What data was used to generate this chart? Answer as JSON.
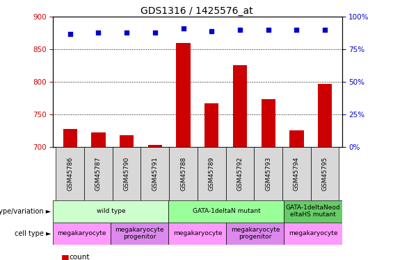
{
  "title": "GDS1316 / 1425576_at",
  "samples": [
    "GSM45786",
    "GSM45787",
    "GSM45790",
    "GSM45791",
    "GSM45788",
    "GSM45789",
    "GSM45792",
    "GSM45793",
    "GSM45794",
    "GSM45795"
  ],
  "counts": [
    728,
    722,
    718,
    703,
    860,
    767,
    826,
    773,
    726,
    797
  ],
  "percentiles": [
    87,
    88,
    88,
    88,
    91,
    89,
    90,
    90,
    90,
    90
  ],
  "ylim_left": [
    700,
    900
  ],
  "ylim_right": [
    0,
    100
  ],
  "yticks_left": [
    700,
    750,
    800,
    850,
    900
  ],
  "yticks_right": [
    0,
    25,
    50,
    75,
    100
  ],
  "bar_color": "#cc0000",
  "scatter_color": "#0000cc",
  "genotype_groups": [
    {
      "label": "wild type",
      "start": 0,
      "end": 4,
      "color": "#ccffcc"
    },
    {
      "label": "GATA-1deltaN mutant",
      "start": 4,
      "end": 8,
      "color": "#99ff99"
    },
    {
      "label": "GATA-1deltaNeod\neltaHS mutant",
      "start": 8,
      "end": 10,
      "color": "#66cc66"
    }
  ],
  "cell_type_groups": [
    {
      "label": "megakaryocyte",
      "start": 0,
      "end": 2,
      "color": "#ff99ff"
    },
    {
      "label": "megakaryocyte\nprogenitor",
      "start": 2,
      "end": 4,
      "color": "#dd88ee"
    },
    {
      "label": "megakaryocyte",
      "start": 4,
      "end": 6,
      "color": "#ff99ff"
    },
    {
      "label": "megakaryocyte\nprogenitor",
      "start": 6,
      "end": 8,
      "color": "#dd88ee"
    },
    {
      "label": "megakaryocyte",
      "start": 8,
      "end": 10,
      "color": "#ff99ff"
    }
  ],
  "bar_color_red": "#cc0000",
  "dot_color_blue": "#0000cc"
}
